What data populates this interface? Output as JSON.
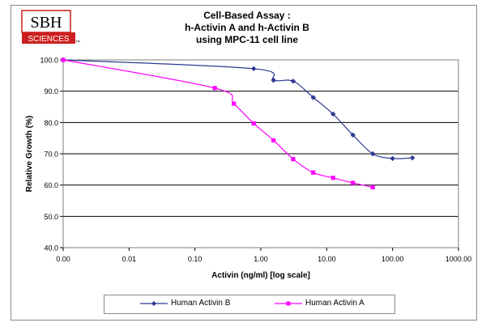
{
  "logo": {
    "line1": "SBH",
    "line2": "SCIENCES",
    "mark": "™",
    "color": "#cc1f1f"
  },
  "chart_data": {
    "type": "line",
    "title": [
      "Cell-Based Assay :",
      "h-Activin A and h-Activin B",
      "using MPC-11 cell line"
    ],
    "xlabel": "Activin (ng/ml) [log scale]",
    "ylabel": "Relative Growth (%)",
    "x_scale": "log",
    "x_ticks": [
      "0.00",
      "0.01",
      "0.10",
      "1.00",
      "10.00",
      "100.00",
      "1000.00"
    ],
    "y_ticks": [
      "40.0",
      "50.0",
      "60.0",
      "70.0",
      "80.0",
      "90.0",
      "100.0"
    ],
    "ylim": [
      40,
      100
    ],
    "grid": "horizontal",
    "legend_position": "bottom",
    "series": [
      {
        "name": "Human Activin B",
        "color": "#2b3990",
        "marker": "diamond",
        "points": [
          {
            "x": 0.001,
            "y": 100.0
          },
          {
            "x": 0.78,
            "y": 97.2
          },
          {
            "x": 1.56,
            "y": 93.5
          },
          {
            "x": 3.1,
            "y": 93.2
          },
          {
            "x": 6.25,
            "y": 88.0
          },
          {
            "x": 12.5,
            "y": 82.7
          },
          {
            "x": 25,
            "y": 76.0
          },
          {
            "x": 50,
            "y": 70.0
          },
          {
            "x": 100,
            "y": 68.5
          },
          {
            "x": 200,
            "y": 68.7
          }
        ]
      },
      {
        "name": "Human Activin A",
        "color": "#ff00ff",
        "marker": "square",
        "points": [
          {
            "x": 0.001,
            "y": 100.0
          },
          {
            "x": 0.2,
            "y": 91.0
          },
          {
            "x": 0.39,
            "y": 86.0
          },
          {
            "x": 0.78,
            "y": 79.7
          },
          {
            "x": 1.56,
            "y": 74.3
          },
          {
            "x": 3.1,
            "y": 68.3
          },
          {
            "x": 6.25,
            "y": 64.0
          },
          {
            "x": 12.5,
            "y": 62.3
          },
          {
            "x": 25,
            "y": 60.7
          },
          {
            "x": 50,
            "y": 59.3
          }
        ]
      }
    ]
  }
}
